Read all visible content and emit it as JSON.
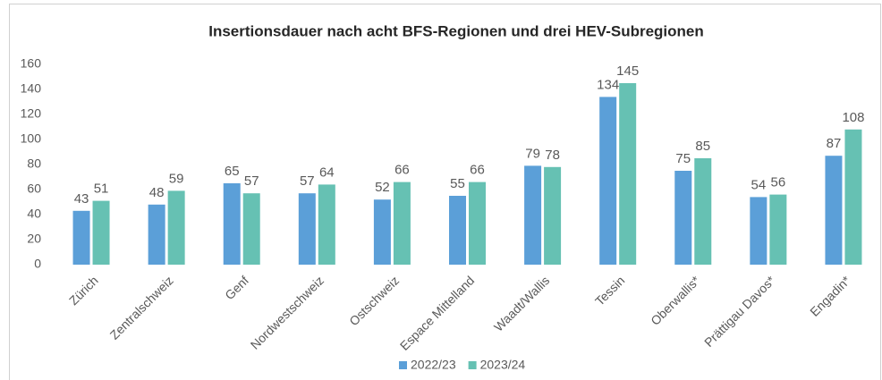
{
  "chart_data": {
    "type": "bar",
    "title": "Insertionsdauer nach acht BFS-Regionen und drei HEV-Subregionen",
    "categories": [
      "Zürich",
      "Zentralschweiz",
      "Genf",
      "Nordwestschweiz",
      "Ostschweiz",
      "Espace Mittelland",
      "Waadt/Wallis",
      "Tessin",
      "Oberwallis*",
      "Prättigau Davos*",
      "Engadin*"
    ],
    "series": [
      {
        "name": "2022/23",
        "color": "#5b9fd8",
        "values": [
          43,
          48,
          65,
          57,
          52,
          55,
          79,
          134,
          75,
          54,
          87
        ]
      },
      {
        "name": "2023/24",
        "color": "#66c1b3",
        "values": [
          51,
          59,
          57,
          64,
          66,
          66,
          78,
          145,
          85,
          56,
          108
        ]
      }
    ],
    "ylim": [
      0,
      160
    ],
    "yticks": [
      0,
      20,
      40,
      60,
      80,
      100,
      120,
      140,
      160
    ],
    "legend": "bottom"
  }
}
